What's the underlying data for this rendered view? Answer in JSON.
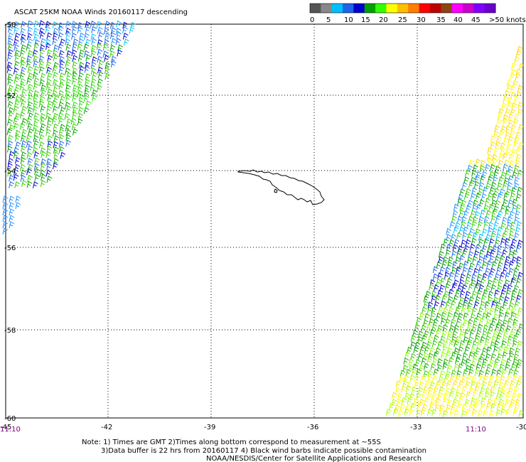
{
  "title": "ASCAT 25KM NOAA Winds 20160117 descending",
  "legend": {
    "colors": [
      "#555555",
      "#888888",
      "#00bfff",
      "#1e63e8",
      "#0000cd",
      "#00a000",
      "#33ff00",
      "#ffff00",
      "#ffbf00",
      "#ff7f00",
      "#ff0000",
      "#bf0000",
      "#8b4513",
      "#ff00ff",
      "#cc00cc",
      "#7f00ff",
      "#6a00cc"
    ],
    "labels": [
      "0",
      "5",
      "10",
      "15",
      "20",
      "25",
      "30",
      "35",
      "40",
      "45",
      ">50 knots"
    ]
  },
  "lon_ticks": [
    "-45",
    "-42",
    "-39",
    "-36",
    "-33",
    "-30"
  ],
  "lat_ticks": [
    "-50",
    "-52",
    "-54",
    "-56",
    "-58",
    "-60"
  ],
  "times": {
    "left": "11:10",
    "right": "11:10"
  },
  "notes": [
    "Note: 1) Times are GMT 2)Times along bottom correspond to measurement at ~55S",
    "3)Data buffer is 22 hrs from 20160117 4) Black wind barbs indicate possible contamination",
    "NOAA/NESDIS/Center for Satellite Applications and Research"
  ]
}
